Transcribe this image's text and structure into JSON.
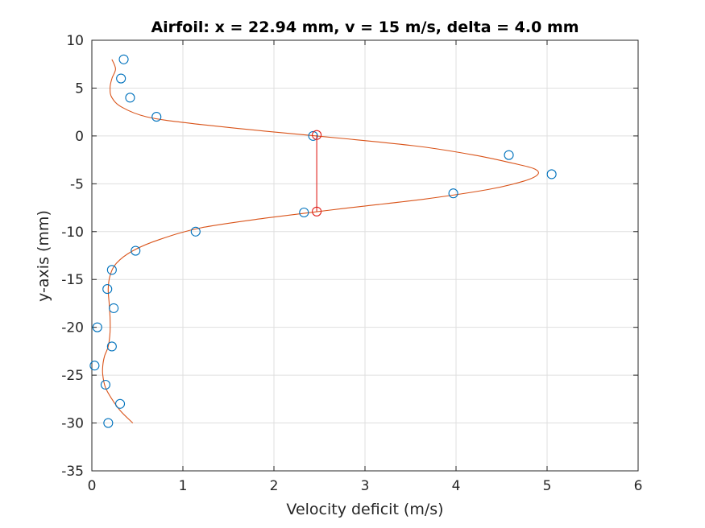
{
  "chart_data": {
    "type": "scatter",
    "title": "Airfoil: x = 22.94 mm, v = 15 m/s, delta = 4.0 mm",
    "xlabel": "Velocity deficit (m/s)",
    "ylabel": "y-axis (mm)",
    "xlim": [
      0,
      6
    ],
    "ylim": [
      -35,
      10
    ],
    "xticks": [
      0,
      1,
      2,
      3,
      4,
      5,
      6
    ],
    "yticks": [
      10,
      5,
      0,
      -5,
      -10,
      -15,
      -20,
      -25,
      -30,
      -35
    ],
    "grid": true,
    "colors": {
      "measured": "#0072BD",
      "fit": "#D95319",
      "width_marker": "#E0201B"
    },
    "measured_points": {
      "x": [
        0.35,
        0.32,
        0.42,
        0.71,
        2.43,
        4.58,
        5.05,
        3.97,
        2.33,
        1.14,
        0.48,
        0.22,
        0.17,
        0.24,
        0.06,
        0.22,
        0.03,
        0.15,
        0.31,
        0.18
      ],
      "y": [
        8,
        6,
        4,
        2,
        0,
        -2,
        -4,
        -6,
        -8,
        -10,
        -12,
        -14,
        -16,
        -18,
        -20,
        -22,
        -24,
        -26,
        -28,
        -30
      ]
    },
    "fit_curve": {
      "x": [
        0.22,
        0.26,
        0.22,
        0.2,
        0.22,
        0.33,
        0.6,
        1.1,
        1.9,
        2.8,
        3.6,
        4.2,
        4.6,
        4.85,
        4.9,
        4.75,
        4.35,
        3.65,
        2.75,
        1.9,
        1.2,
        0.75,
        0.45,
        0.27,
        0.2,
        0.18,
        0.19,
        0.2,
        0.2,
        0.18,
        0.14,
        0.12,
        0.12,
        0.15,
        0.22,
        0.32,
        0.45
      ],
      "y": [
        8,
        7,
        6,
        5,
        4,
        3,
        2,
        1.3,
        0.5,
        -0.3,
        -1.1,
        -2,
        -2.8,
        -3.4,
        -4,
        -4.7,
        -5.6,
        -6.6,
        -7.6,
        -8.6,
        -9.6,
        -10.8,
        -12,
        -13.3,
        -14.6,
        -16,
        -17.5,
        -19,
        -20.5,
        -22,
        -23,
        -24,
        -25,
        -26.3,
        -27.5,
        -28.8,
        -30
      ]
    },
    "width_markers": {
      "x": [
        2.47,
        2.47
      ],
      "y": [
        0.1,
        -7.9
      ]
    }
  }
}
